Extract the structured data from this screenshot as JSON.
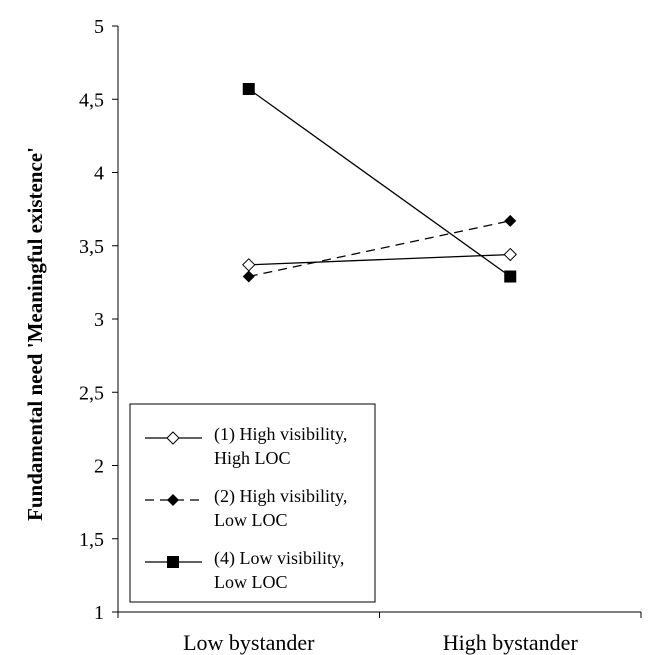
{
  "chart_data": {
    "type": "line",
    "title": "",
    "xlabel": "",
    "ylabel": "Fundamental need 'Meaningful existence'",
    "categories": [
      "Low bystander",
      "High bystander"
    ],
    "ylim": [
      1,
      5
    ],
    "yticks": [
      "1",
      "1,5",
      "2",
      "2,5",
      "3",
      "3,5",
      "4",
      "4,5",
      "5"
    ],
    "grid": false,
    "legend_position": "bottom-left",
    "series": [
      {
        "name": "(1) High visibility, High LOC",
        "legend_lines": [
          "(1) High visibility,",
          "High LOC"
        ],
        "values": [
          3.37,
          3.44
        ],
        "marker": "open-diamond",
        "line": "solid",
        "color": "#000000"
      },
      {
        "name": "(2) High visibility, Low LOC",
        "legend_lines": [
          "(2) High visibility,",
          "Low LOC"
        ],
        "values": [
          3.29,
          3.67
        ],
        "marker": "filled-diamond",
        "line": "dashed",
        "color": "#000000"
      },
      {
        "name": "(4) Low visibility, Low LOC",
        "legend_lines": [
          "(4) Low visibility,",
          "Low LOC"
        ],
        "values": [
          4.57,
          3.29
        ],
        "marker": "filled-square",
        "line": "solid",
        "color": "#000000"
      }
    ]
  }
}
